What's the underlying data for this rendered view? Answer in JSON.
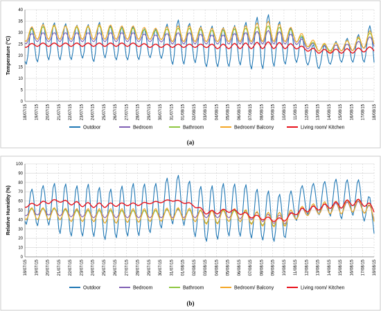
{
  "chart_data": [
    {
      "panel_label": "(a)",
      "type": "line",
      "title": "",
      "ylabel": "Temperature (°C)",
      "xlabel": "",
      "ylim": [
        0,
        40
      ],
      "yticks": [
        0,
        5,
        10,
        15,
        20,
        25,
        30,
        35,
        40
      ],
      "grid": true,
      "legend_position": "bottom",
      "x": [
        "18/07/15",
        "19/07/15",
        "20/07/15",
        "21/07/15",
        "22/07/15",
        "23/07/15",
        "24/07/15",
        "25/07/15",
        "26/07/15",
        "27/07/15",
        "28/07/15",
        "29/07/15",
        "30/07/15",
        "31/07/15",
        "01/08/15",
        "02/08/15",
        "03/08/15",
        "04/08/15",
        "05/08/15",
        "06/08/15",
        "07/08/15",
        "08/08/15",
        "09/08/15",
        "10/08/15",
        "11/08/15",
        "12/08/15",
        "13/08/15",
        "14/08/15",
        "15/08/15",
        "16/08/15",
        "17/08/15",
        "18/08/15"
      ],
      "series": [
        {
          "name": "Outdoor",
          "color": "#1f77b4",
          "daily_min": [
            16,
            17,
            18,
            18,
            18,
            19,
            17,
            19,
            18,
            18,
            18,
            19,
            19,
            16,
            16,
            17,
            15,
            15,
            15,
            16,
            14,
            14,
            15,
            16,
            17,
            16,
            14,
            16,
            17,
            17,
            17,
            17
          ],
          "daily_max": [
            32,
            33,
            35,
            34,
            34,
            33,
            34,
            35,
            32,
            33,
            33,
            31,
            32,
            35,
            36,
            33,
            33,
            33,
            32,
            34,
            35,
            38,
            38,
            33,
            32,
            26,
            24,
            25,
            27,
            28,
            30,
            35
          ]
        },
        {
          "name": "Bedroom",
          "color": "#7f5fb4",
          "daily_min": [
            25,
            26,
            26,
            26,
            26,
            26,
            26,
            26,
            26,
            26,
            26,
            26,
            26,
            25,
            25,
            25,
            25,
            25,
            25,
            25,
            25,
            25,
            25,
            25,
            25,
            23,
            22,
            22,
            22,
            22,
            23,
            24
          ],
          "daily_max": [
            29,
            30,
            30,
            30,
            30,
            30,
            30,
            30,
            30,
            30,
            30,
            29,
            29,
            30,
            30,
            30,
            29,
            29,
            29,
            30,
            30,
            31,
            31,
            30,
            29,
            26,
            25,
            24,
            25,
            25,
            27,
            29
          ]
        },
        {
          "name": "Bathroom",
          "color": "#8dc63f",
          "daily_min": [
            26,
            27,
            27,
            27,
            27,
            27,
            27,
            27,
            27,
            27,
            27,
            27,
            27,
            26,
            26,
            26,
            26,
            26,
            26,
            26,
            26,
            26,
            26,
            26,
            26,
            24,
            22,
            22,
            22,
            22,
            23,
            25
          ],
          "daily_max": [
            31,
            32,
            33,
            33,
            33,
            32,
            33,
            33,
            32,
            32,
            32,
            31,
            31,
            32,
            32,
            32,
            31,
            31,
            31,
            32,
            32,
            33,
            33,
            32,
            31,
            27,
            25,
            25,
            26,
            27,
            28,
            31
          ]
        },
        {
          "name": "Bedroom/ Balcony",
          "color": "#f5a623",
          "daily_min": [
            26,
            27,
            27,
            27,
            27,
            27,
            27,
            27,
            27,
            27,
            27,
            27,
            27,
            26,
            26,
            26,
            26,
            26,
            26,
            26,
            26,
            26,
            26,
            26,
            26,
            24,
            22,
            21,
            22,
            22,
            23,
            25
          ],
          "daily_max": [
            32,
            33,
            34,
            33,
            33,
            33,
            33,
            34,
            33,
            33,
            33,
            32,
            32,
            33,
            33,
            33,
            32,
            32,
            32,
            33,
            33,
            35,
            35,
            33,
            32,
            28,
            26,
            25,
            26,
            27,
            29,
            32
          ]
        },
        {
          "name": "Living room/ Kitchen",
          "color": "#e8101a",
          "daily_min": [
            23.5,
            24,
            24,
            24,
            24,
            24,
            24,
            24,
            24,
            24,
            24,
            23.5,
            23.5,
            23.5,
            23.5,
            23.5,
            23.5,
            23,
            23,
            23,
            23,
            23,
            23,
            23,
            23,
            22,
            21,
            21,
            21,
            21,
            21.5,
            22
          ],
          "daily_max": [
            25,
            25.5,
            25.5,
            25.5,
            25.5,
            25.5,
            25.5,
            25.5,
            25.5,
            25.5,
            25.5,
            25,
            25,
            25,
            25,
            25,
            25,
            25,
            25,
            25.5,
            25.5,
            26,
            26,
            25.5,
            25,
            23.5,
            23,
            22.5,
            23,
            23,
            23.5,
            24
          ]
        }
      ]
    },
    {
      "panel_label": "(b)",
      "type": "line",
      "title": "",
      "ylabel": "Relative Humidity (%)",
      "xlabel": "",
      "ylim": [
        0,
        100
      ],
      "yticks": [
        0,
        10,
        20,
        30,
        40,
        50,
        60,
        70,
        80,
        90,
        100
      ],
      "grid": true,
      "legend_position": "bottom",
      "x": [
        "18/07/15",
        "19/07/15",
        "20/07/15",
        "21/07/15",
        "22/07/15",
        "23/07/15",
        "24/07/15",
        "25/07/15",
        "26/07/15",
        "27/07/15",
        "28/07/15",
        "29/07/15",
        "30/07/15",
        "31/07/15",
        "01/08/15",
        "02/08/15",
        "03/08/15",
        "04/08/15",
        "05/08/15",
        "06/08/15",
        "07/08/15",
        "08/08/15",
        "09/08/15",
        "10/08/15",
        "11/08/15",
        "12/08/15",
        "13/08/15",
        "14/08/15",
        "15/08/15",
        "16/08/15",
        "17/08/15",
        "18/08/15"
      ],
      "series": [
        {
          "name": "Outdoor",
          "color": "#1f77b4",
          "daily_min": [
            35,
            33,
            35,
            25,
            22,
            22,
            22,
            18,
            20,
            22,
            22,
            25,
            30,
            35,
            35,
            22,
            16,
            18,
            22,
            22,
            20,
            18,
            16,
            18,
            38,
            45,
            45,
            44,
            40,
            45,
            40,
            25
          ],
          "daily_max": [
            70,
            75,
            78,
            80,
            78,
            76,
            80,
            72,
            74,
            78,
            80,
            78,
            80,
            88,
            88,
            78,
            75,
            78,
            80,
            78,
            78,
            70,
            72,
            65,
            75,
            78,
            80,
            82,
            85,
            82,
            84,
            52
          ]
        },
        {
          "name": "Bedroom",
          "color": "#7f5fb4",
          "daily_min": [
            44,
            45,
            45,
            44,
            43,
            43,
            42,
            42,
            42,
            42,
            42,
            42,
            42,
            42,
            42,
            42,
            42,
            42,
            42,
            41,
            40,
            38,
            36,
            35,
            40,
            44,
            46,
            46,
            46,
            48,
            48,
            40
          ],
          "daily_max": [
            52,
            52,
            52,
            52,
            51,
            51,
            50,
            50,
            50,
            50,
            50,
            50,
            50,
            51,
            51,
            50,
            50,
            50,
            50,
            50,
            49,
            47,
            45,
            45,
            50,
            54,
            56,
            58,
            58,
            60,
            60,
            52
          ]
        },
        {
          "name": "Bathroom",
          "color": "#8dc63f",
          "daily_min": [
            40,
            40,
            40,
            40,
            38,
            38,
            38,
            36,
            36,
            37,
            37,
            38,
            38,
            40,
            40,
            38,
            36,
            36,
            38,
            38,
            36,
            34,
            33,
            33,
            40,
            44,
            46,
            46,
            46,
            48,
            48,
            38
          ],
          "daily_max": [
            52,
            52,
            52,
            52,
            50,
            50,
            50,
            50,
            50,
            50,
            50,
            50,
            50,
            52,
            52,
            50,
            50,
            50,
            50,
            50,
            50,
            48,
            48,
            48,
            52,
            56,
            58,
            60,
            60,
            62,
            62,
            52
          ]
        },
        {
          "name": "Bedroom/ Balcony",
          "color": "#f5a623",
          "daily_min": [
            40,
            40,
            40,
            40,
            38,
            38,
            38,
            36,
            36,
            37,
            37,
            38,
            38,
            40,
            40,
            38,
            35,
            35,
            38,
            38,
            35,
            33,
            32,
            32,
            40,
            44,
            46,
            46,
            46,
            48,
            48,
            38
          ],
          "daily_max": [
            53,
            53,
            53,
            53,
            52,
            52,
            52,
            52,
            52,
            52,
            52,
            52,
            52,
            53,
            53,
            52,
            50,
            50,
            52,
            52,
            50,
            48,
            48,
            48,
            52,
            56,
            58,
            60,
            60,
            62,
            62,
            52
          ]
        },
        {
          "name": "Living room/ Kitchen",
          "color": "#e8101a",
          "daily_min": [
            53,
            55,
            57,
            59,
            56,
            54,
            53,
            53,
            54,
            55,
            55,
            57,
            58,
            60,
            58,
            54,
            46,
            46,
            48,
            46,
            42,
            40,
            38,
            38,
            45,
            48,
            50,
            52,
            52,
            55,
            55,
            48
          ],
          "daily_max": [
            57,
            58,
            61,
            62,
            60,
            59,
            58,
            58,
            58,
            58,
            58,
            59,
            60,
            62,
            60,
            57,
            50,
            50,
            52,
            50,
            46,
            44,
            42,
            42,
            50,
            54,
            55,
            58,
            60,
            62,
            62,
            55
          ]
        }
      ]
    }
  ]
}
